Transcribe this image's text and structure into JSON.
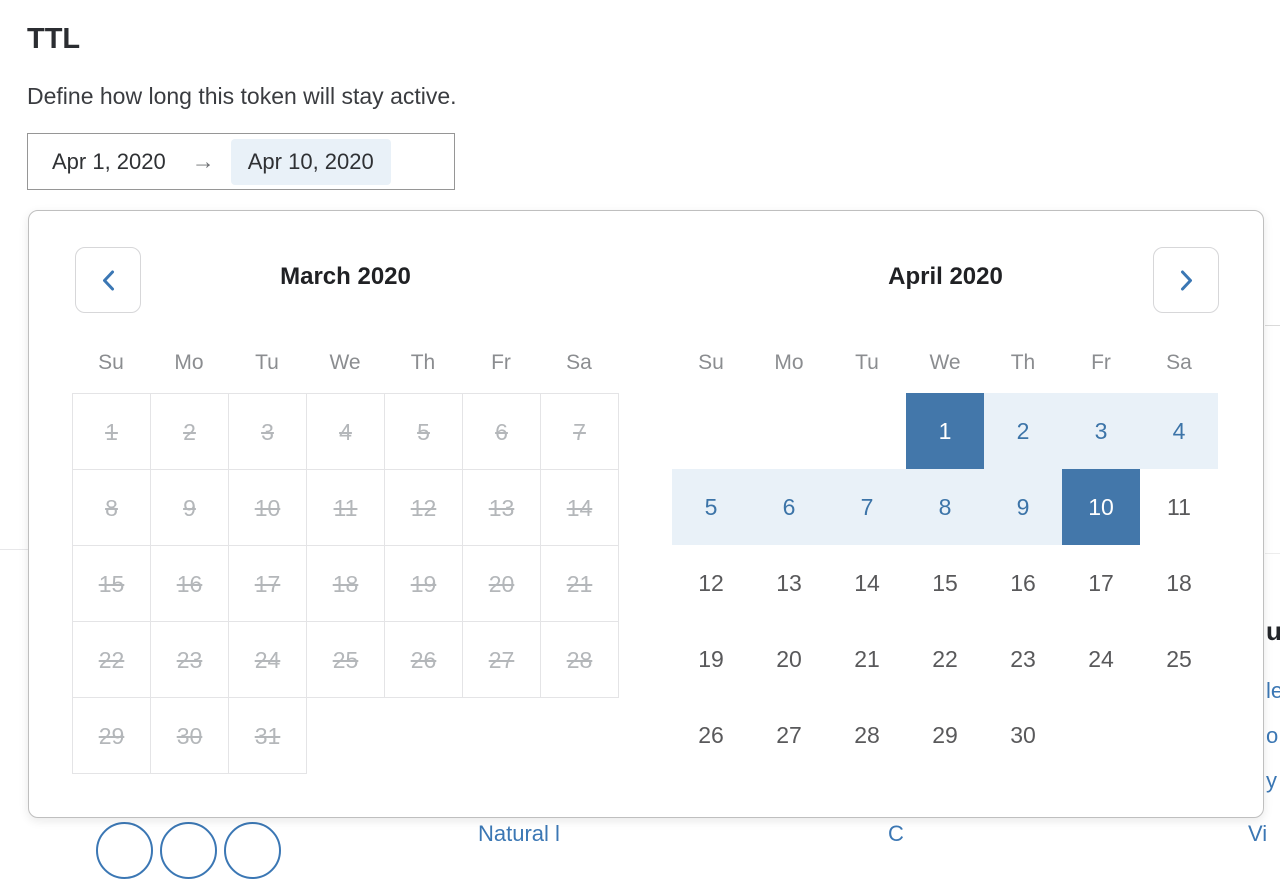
{
  "header": {
    "title": "TTL",
    "subtitle": "Define how long this token will stay active."
  },
  "date_range_input": {
    "start_value": "Apr 1, 2020",
    "separator_glyph": "→",
    "separator_icon": "arrow-right-icon",
    "end_value": "Apr 10, 2020"
  },
  "calendar": {
    "nav": {
      "prev_icon": "chevron-left-icon",
      "next_icon": "chevron-right-icon"
    },
    "weekdays": [
      "Su",
      "Mo",
      "Tu",
      "We",
      "Th",
      "Fr",
      "Sa"
    ],
    "months": [
      {
        "title": "March 2020",
        "first_day_column": 0,
        "days": [
          1,
          2,
          3,
          4,
          5,
          6,
          7,
          8,
          9,
          10,
          11,
          12,
          13,
          14,
          15,
          16,
          17,
          18,
          19,
          20,
          21,
          22,
          23,
          24,
          25,
          26,
          27,
          28,
          29,
          30,
          31
        ],
        "all_disabled": true,
        "bordered": true
      },
      {
        "title": "April 2020",
        "first_day_column": 3,
        "days": [
          1,
          2,
          3,
          4,
          5,
          6,
          7,
          8,
          9,
          10,
          11,
          12,
          13,
          14,
          15,
          16,
          17,
          18,
          19,
          20,
          21,
          22,
          23,
          24,
          25,
          26,
          27,
          28,
          29,
          30
        ],
        "all_disabled": false,
        "bordered": false,
        "selected_days": [
          1,
          10
        ],
        "in_range_days": [
          2,
          3,
          4,
          5,
          6,
          7,
          8,
          9
        ]
      }
    ]
  },
  "colors": {
    "selected_bg": "#4377aa",
    "range_bg": "#e9f1f8",
    "range_text": "#3c74a8",
    "accent": "#3b77b4",
    "disabled_text": "#b4b7ba",
    "day_text": "#59595b",
    "grid_line": "#e4e4e6"
  },
  "background_page": {
    "right_edge_fragments": {
      "heading_fragment": "u",
      "link_fragment_1": "le",
      "link_fragment_2": "o",
      "link_fragment_3": "y"
    },
    "bottom_fragments": {
      "circle_count": 3,
      "link_fragment_1": "Natural l",
      "link_fragment_2": "C",
      "link_fragment_3": "Vi"
    }
  }
}
